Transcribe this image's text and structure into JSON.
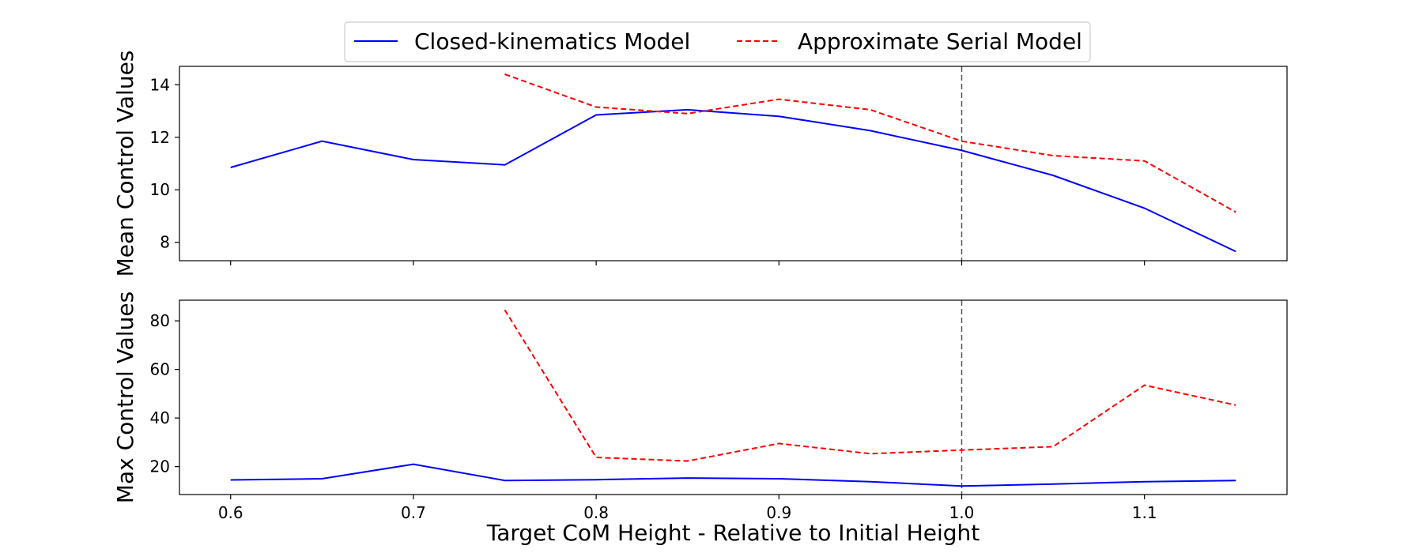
{
  "chart_data": [
    {
      "type": "line",
      "name": "mean",
      "ylabel": "Mean Control Values",
      "xlabel": "",
      "xlim": [
        0.572,
        1.178
      ],
      "ylim": [
        7.3,
        14.7
      ],
      "x_ticks": [
        "0.6",
        "0.7",
        "0.8",
        "0.9",
        "1.0",
        "1.1"
      ],
      "y_ticks": [
        "8",
        "10",
        "12",
        "14"
      ],
      "vline_x": 1.0,
      "series": [
        {
          "name": "Closed-kinematics Model",
          "style": "solid",
          "color": "#0000ff",
          "x": [
            0.6,
            0.65,
            0.7,
            0.75,
            0.8,
            0.85,
            0.9,
            0.95,
            1.0,
            1.05,
            1.1,
            1.15
          ],
          "y": [
            10.85,
            11.85,
            11.15,
            10.95,
            12.85,
            13.05,
            12.8,
            12.25,
            11.5,
            10.55,
            9.3,
            7.65
          ]
        },
        {
          "name": "Approximate Serial Model",
          "style": "dashed",
          "color": "#ff0000",
          "x": [
            0.75,
            0.8,
            0.85,
            0.9,
            0.95,
            1.0,
            1.05,
            1.1,
            1.15
          ],
          "y": [
            14.4,
            13.15,
            12.9,
            13.45,
            13.05,
            11.85,
            11.3,
            11.1,
            9.15
          ]
        }
      ]
    },
    {
      "type": "line",
      "name": "max",
      "ylabel": "Max Control Values",
      "xlabel": "Target CoM Height - Relative to Initial Height",
      "xlim": [
        0.572,
        1.178
      ],
      "ylim": [
        8.5,
        88.5
      ],
      "x_ticks": [
        "0.6",
        "0.7",
        "0.8",
        "0.9",
        "1.0",
        "1.1"
      ],
      "y_ticks": [
        "20",
        "40",
        "60",
        "80"
      ],
      "vline_x": 1.0,
      "series": [
        {
          "name": "Closed-kinematics Model",
          "style": "solid",
          "color": "#0000ff",
          "x": [
            0.6,
            0.65,
            0.7,
            0.75,
            0.8,
            0.85,
            0.9,
            0.95,
            1.0,
            1.05,
            1.1,
            1.15
          ],
          "y": [
            14.5,
            15,
            21,
            14.3,
            14.6,
            15.3,
            15,
            13.8,
            12,
            12.8,
            13.8,
            14.3
          ]
        },
        {
          "name": "Approximate Serial Model",
          "style": "dashed",
          "color": "#ff0000",
          "x": [
            0.75,
            0.8,
            0.85,
            0.9,
            0.95,
            1.0,
            1.05,
            1.1,
            1.15
          ],
          "y": [
            84.5,
            23.8,
            22.3,
            29.5,
            25.3,
            26.8,
            28.2,
            53.5,
            45.3
          ]
        }
      ]
    }
  ],
  "legend": {
    "entries": [
      {
        "label": "Closed-kinematics Model",
        "color": "#0000ff",
        "style": "solid"
      },
      {
        "label": "Approximate Serial Model",
        "color": "#ff0000",
        "style": "dashed"
      }
    ]
  }
}
